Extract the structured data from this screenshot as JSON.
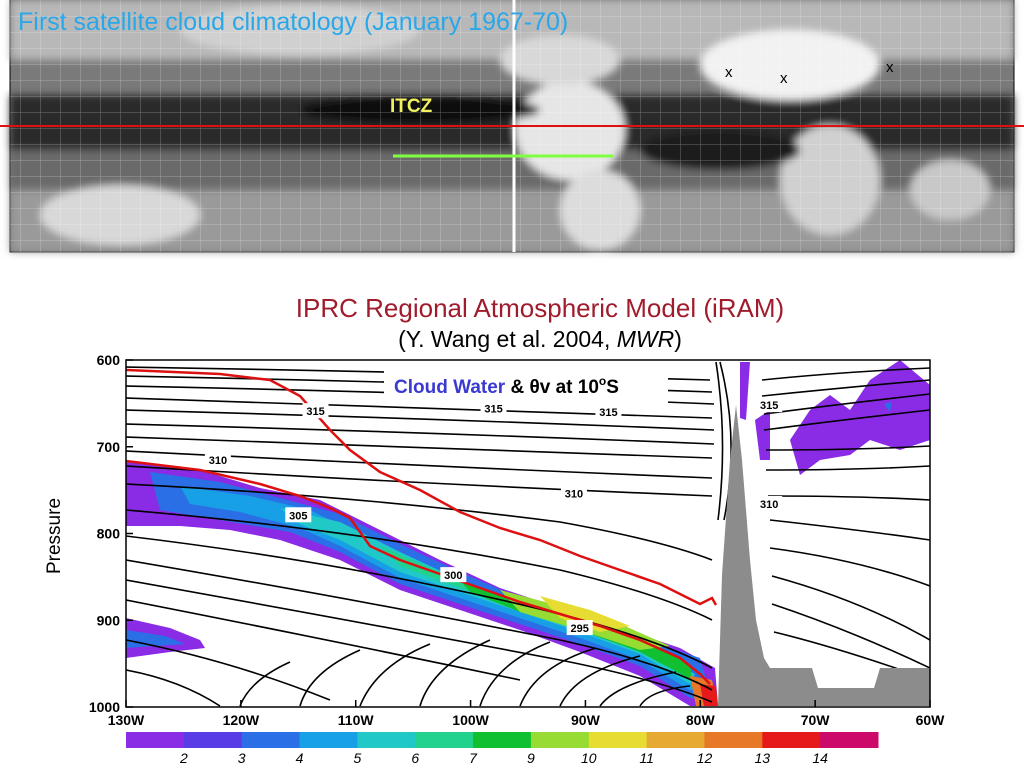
{
  "satellite": {
    "title": "First satellite cloud climatology (January 1967-70)",
    "itcz_label": "ITCZ",
    "markers": [
      "x",
      "x",
      "x"
    ]
  },
  "model": {
    "title": "IPRC Regional Atmospheric Model (iRAM)",
    "subtitle_prefix": "(Y. Wang et al. 2004, ",
    "subtitle_journal": "MWR",
    "subtitle_suffix": ")"
  },
  "chart_data": {
    "type": "contour",
    "legend_label_part1": "Cloud Water",
    "legend_label_part2": " & ",
    "legend_label_part3": "θv at 10",
    "legend_label_sup": "o",
    "legend_label_part4": "S",
    "ylabel": "Pressure",
    "x_ticks": [
      {
        "v": -130,
        "label": "130W"
      },
      {
        "v": -120,
        "label": "120W"
      },
      {
        "v": -110,
        "label": "110W"
      },
      {
        "v": -100,
        "label": "100W"
      },
      {
        "v": -90,
        "label": "90W"
      },
      {
        "v": -80,
        "label": "80W"
      },
      {
        "v": -70,
        "label": "70W"
      },
      {
        "v": -60,
        "label": "60W"
      }
    ],
    "y_ticks": [
      {
        "v": 600,
        "label": "600"
      },
      {
        "v": 700,
        "label": "700"
      },
      {
        "v": 800,
        "label": "800"
      },
      {
        "v": 900,
        "label": "900"
      },
      {
        "v": 1000,
        "label": "1000"
      }
    ],
    "xlim": [
      -130,
      -60
    ],
    "ylim": [
      1000,
      600
    ],
    "contour_labels": [
      {
        "text": "315",
        "x": -113.5,
        "p": 659
      },
      {
        "text": "315",
        "x": -98,
        "p": 656
      },
      {
        "text": "315",
        "x": -88,
        "p": 660
      },
      {
        "text": "315",
        "x": -74,
        "p": 652
      },
      {
        "text": "310",
        "x": -122,
        "p": 715
      },
      {
        "text": "310",
        "x": -91,
        "p": 754
      },
      {
        "text": "310",
        "x": -74,
        "p": 766
      },
      {
        "text": "305",
        "x": -115,
        "p": 779
      },
      {
        "text": "300",
        "x": -101.5,
        "p": 848
      },
      {
        "text": "295",
        "x": -90.5,
        "p": 909
      }
    ],
    "colorbar": {
      "labels": [
        "2",
        "3",
        "4",
        "5",
        "6",
        "7",
        "9",
        "10",
        "11",
        "12",
        "13",
        "14"
      ],
      "colors": [
        "#8a2be6",
        "#5a3ce6",
        "#2a6fe6",
        "#18a0e6",
        "#20c8c8",
        "#20d28c",
        "#10c030",
        "#96dc32",
        "#e6dc32",
        "#e6aa32",
        "#e67828",
        "#e61a1a",
        "#cc0a6a"
      ]
    }
  }
}
